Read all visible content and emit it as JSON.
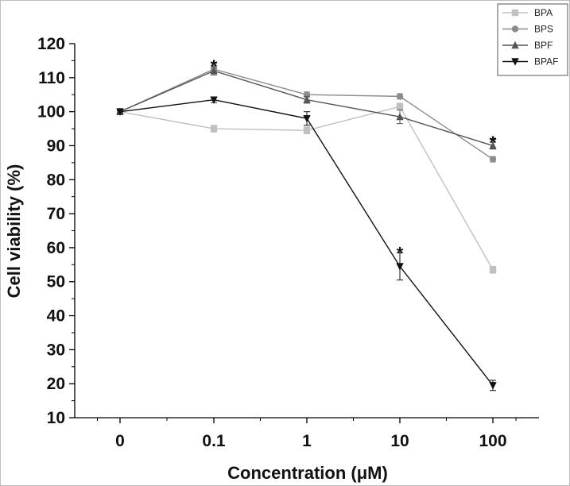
{
  "chart_data": {
    "type": "line",
    "title": "",
    "xlabel": "Concentration (μM)",
    "ylabel": "Cell viability (%)",
    "categories": [
      "0",
      "0.1",
      "1",
      "10",
      "100"
    ],
    "ylim": [
      10,
      120
    ],
    "y_ticks": [
      "10",
      "20",
      "30",
      "40",
      "50",
      "60",
      "70",
      "80",
      "90",
      "100",
      "110",
      "120"
    ],
    "legend_position": "top-right",
    "grid": false,
    "series": [
      {
        "name": "BPA",
        "color": "#c0c0c0",
        "marker": "square",
        "values": [
          100,
          95,
          94.5,
          101.5,
          53.5
        ],
        "errors": [
          0.5,
          1.0,
          1.0,
          1.0,
          1.0
        ],
        "significant": [
          false,
          false,
          false,
          false,
          true
        ]
      },
      {
        "name": "BPS",
        "color": "#8c8c8c",
        "marker": "circle",
        "values": [
          100,
          112.5,
          105,
          104.5,
          86
        ],
        "errors": [
          0.5,
          1.0,
          0.8,
          0.8,
          0.8
        ],
        "significant": [
          false,
          true,
          false,
          false,
          true
        ]
      },
      {
        "name": "BPF",
        "color": "#555555",
        "marker": "triangle-up",
        "values": [
          100,
          112,
          103.5,
          98.5,
          90
        ],
        "errors": [
          0.5,
          1.2,
          1.0,
          2.0,
          1.0
        ],
        "significant": [
          false,
          true,
          false,
          false,
          true
        ]
      },
      {
        "name": "BPAF",
        "color": "#111111",
        "marker": "triangle-down",
        "values": [
          100,
          103.5,
          98,
          54.5,
          19.5
        ],
        "errors": [
          0.5,
          0.8,
          2.0,
          4.0,
          1.5
        ],
        "significant": [
          false,
          false,
          false,
          true,
          true
        ]
      }
    ],
    "annotations": {
      "significance_symbol": "*"
    }
  }
}
